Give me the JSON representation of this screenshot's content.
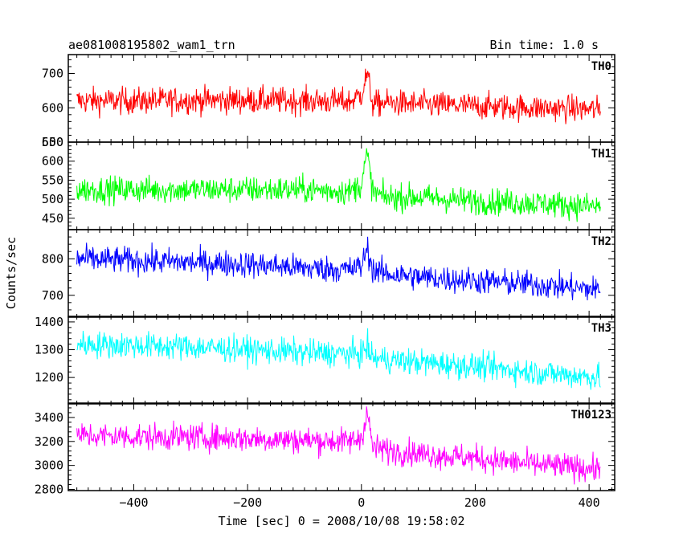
{
  "chart_data": {
    "type": "line",
    "title": "ae081008195802_wam1_trn",
    "bin_time_label": "Bin time: 1.0 s",
    "xlabel": "Time [sec] 0 = 2008/10/08 19:58:02",
    "ylabel": "Counts/sec",
    "xlim": [
      -515,
      445
    ],
    "x_ticks": [
      -400,
      -200,
      0,
      200,
      400
    ],
    "grid": false,
    "panels": [
      {
        "name": "TH0",
        "color": "#ff0000",
        "ylim": [
          500,
          755
        ],
        "y_ticks": [
          500,
          600,
          700
        ],
        "x": [
          -500,
          -400,
          -300,
          -200,
          -100,
          -20,
          0,
          10,
          20,
          40,
          100,
          200,
          300,
          420
        ],
        "values": [
          620,
          620,
          622,
          622,
          620,
          618,
          640,
          700,
          610,
          615,
          610,
          605,
          600,
          595
        ]
      },
      {
        "name": "TH1",
        "color": "#00ff00",
        "ylim": [
          420,
          650
        ],
        "y_ticks": [
          450,
          500,
          550,
          600,
          650
        ],
        "x": [
          -500,
          -400,
          -300,
          -200,
          -100,
          -20,
          0,
          10,
          20,
          40,
          100,
          200,
          300,
          420
        ],
        "values": [
          525,
          525,
          525,
          525,
          525,
          520,
          540,
          620,
          520,
          505,
          505,
          495,
          490,
          480
        ]
      },
      {
        "name": "TH2",
        "color": "#0000ff",
        "ylim": [
          640,
          880
        ],
        "y_ticks": [
          700,
          800
        ],
        "x": [
          -500,
          -400,
          -300,
          -200,
          -100,
          -20,
          0,
          10,
          20,
          40,
          100,
          200,
          300,
          420
        ],
        "values": [
          800,
          795,
          790,
          785,
          775,
          770,
          780,
          830,
          770,
          760,
          750,
          740,
          730,
          715
        ]
      },
      {
        "name": "TH3",
        "color": "#00ffff",
        "ylim": [
          1105,
          1420
        ],
        "y_ticks": [
          1200,
          1300,
          1400
        ],
        "x": [
          -500,
          -400,
          -300,
          -200,
          -100,
          -20,
          0,
          10,
          20,
          40,
          100,
          200,
          300,
          420
        ],
        "values": [
          1320,
          1315,
          1310,
          1300,
          1290,
          1285,
          1285,
          1310,
          1270,
          1265,
          1255,
          1240,
          1220,
          1200
        ]
      },
      {
        "name": "TH0123",
        "color": "#ff00ff",
        "ylim": [
          2790,
          3520
        ],
        "y_ticks": [
          2800,
          3000,
          3200,
          3400
        ],
        "x": [
          -500,
          -400,
          -300,
          -200,
          -100,
          -20,
          0,
          10,
          20,
          40,
          100,
          200,
          300,
          420
        ],
        "values": [
          3250,
          3240,
          3235,
          3225,
          3210,
          3200,
          3230,
          3450,
          3150,
          3130,
          3100,
          3060,
          3010,
          2970
        ]
      }
    ]
  }
}
